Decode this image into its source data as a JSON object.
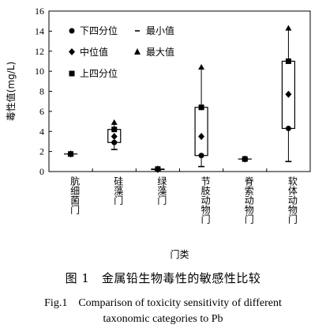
{
  "chart_data": {
    "type": "box",
    "ylabel": "毒性值(mg/L)",
    "xlabel": "门类",
    "ylim": [
      0,
      16
    ],
    "yticks": [
      0,
      2,
      4,
      6,
      8,
      10,
      12,
      14,
      16
    ],
    "grid": false,
    "legend_position": "top-left",
    "legend": {
      "q1": "下四分位",
      "min": "最小值",
      "median": "中位值",
      "max": "最大值",
      "q3": "上四分位"
    },
    "categories": [
      "肮细菌门",
      "硅藻门",
      "绿藻门",
      "节肢动物门",
      "脊索动物门",
      "软体动物门"
    ],
    "boxes": [
      {
        "min": 1.75,
        "q1": 1.75,
        "median": 1.75,
        "q3": 1.75,
        "max": 1.75
      },
      {
        "min": 2.2,
        "q1": 2.9,
        "median": 3.5,
        "q3": 4.2,
        "max": 4.9
      },
      {
        "min": 0.15,
        "q1": 0.2,
        "median": 0.22,
        "q3": 0.25,
        "max": 0.3
      },
      {
        "min": 0.5,
        "q1": 1.6,
        "median": 3.5,
        "q3": 6.4,
        "max": 10.4
      },
      {
        "min": 1.25,
        "q1": 1.25,
        "median": 1.25,
        "q3": 1.25,
        "max": 1.25
      },
      {
        "min": 1.0,
        "q1": 4.3,
        "median": 7.7,
        "q3": 11.0,
        "max": 14.3
      }
    ]
  },
  "caption": {
    "cn": "图 1　金属铅生物毒性的敏感性比较",
    "en_line1": "Fig.1　Comparison of toxicity sensitivity of different",
    "en_line2": "taxonomic categories to Pb"
  }
}
